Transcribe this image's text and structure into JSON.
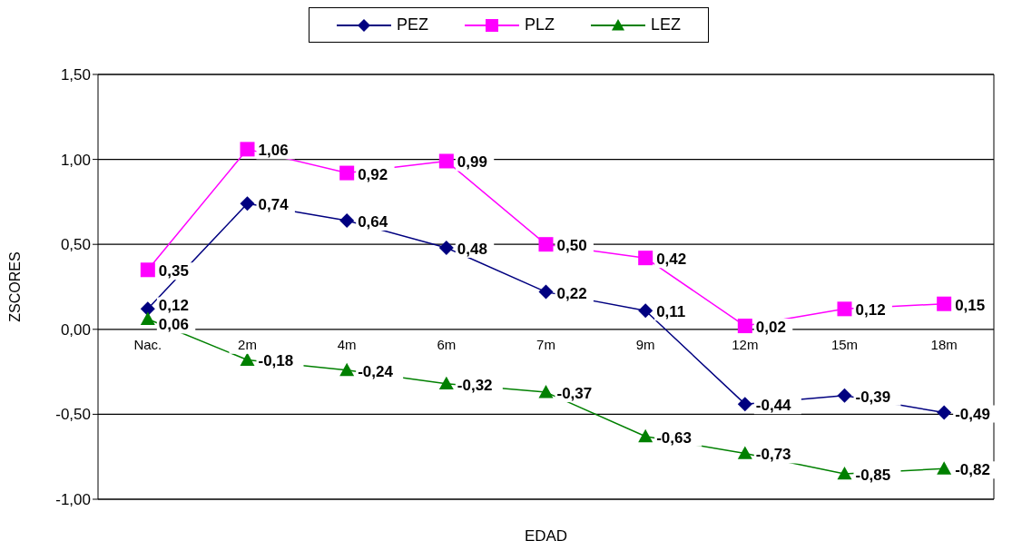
{
  "chart_data": {
    "type": "line",
    "xlabel": "EDAD",
    "ylabel": "ZSCORES",
    "categories": [
      "Nac.",
      "2m",
      "4m",
      "6m",
      "7m",
      "9m",
      "12m",
      "15m",
      "18m"
    ],
    "series": [
      {
        "name": "PEZ",
        "color": "#000080",
        "marker": "diamond",
        "values": [
          0.12,
          0.74,
          0.64,
          0.48,
          0.22,
          0.11,
          -0.44,
          -0.39,
          -0.49
        ],
        "value_labels": [
          "0,12",
          "0,74",
          "0,64",
          "0,48",
          "0,22",
          "0,11",
          "-0,44",
          "-0,39",
          "-0,49"
        ]
      },
      {
        "name": "PLZ",
        "color": "#ff00ff",
        "marker": "square",
        "values": [
          0.35,
          1.06,
          0.92,
          0.99,
          0.5,
          0.42,
          0.02,
          0.12,
          0.15
        ],
        "value_labels": [
          "0,35",
          "1,06",
          "0,92",
          "0,99",
          "0,50",
          "0,42",
          "0,02",
          "0,12",
          "0,15"
        ]
      },
      {
        "name": "LEZ",
        "color": "#008000",
        "marker": "triangle",
        "values": [
          0.06,
          -0.18,
          -0.24,
          -0.32,
          -0.37,
          -0.63,
          -0.73,
          -0.85,
          -0.82
        ],
        "value_labels": [
          "0,06",
          "-0,18",
          "-0,24",
          "-0,32",
          "-0,37",
          "-0,63",
          "-0,73",
          "-0,85",
          "-0,82"
        ]
      }
    ],
    "ylim": [
      -1.0,
      1.5
    ],
    "yticks": [
      {
        "value": -1.0,
        "label": "-1,00"
      },
      {
        "value": -0.5,
        "label": "-0,50"
      },
      {
        "value": 0,
        "label": "0,00"
      },
      {
        "value": 0.5,
        "label": "0,50"
      },
      {
        "value": 1.0,
        "label": "1,00"
      },
      {
        "value": 1.5,
        "label": "1,50"
      }
    ],
    "grid": "y",
    "legend": "top",
    "line_style": "solid"
  }
}
